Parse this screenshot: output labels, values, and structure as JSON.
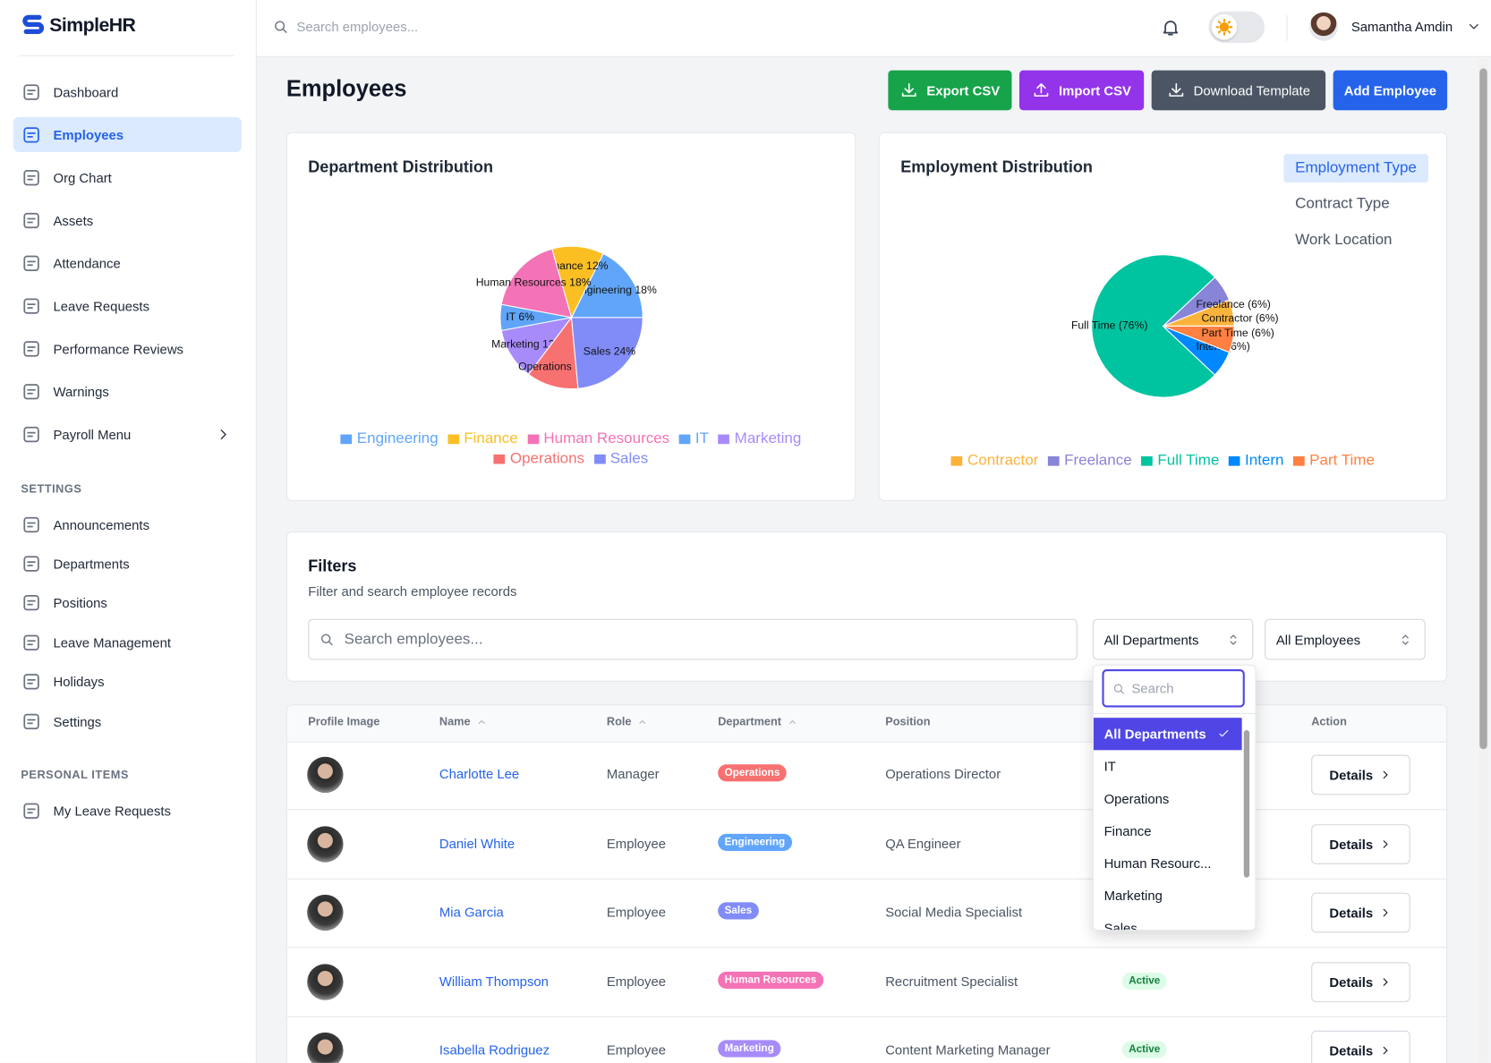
{
  "sidebar": {
    "brand": "SimpleHR",
    "nav": [
      {
        "label": "Dashboard",
        "active": false
      },
      {
        "label": "Employees",
        "active": true
      },
      {
        "label": "Org Chart",
        "active": false
      },
      {
        "label": "Assets",
        "active": false
      },
      {
        "label": "Attendance",
        "active": false
      },
      {
        "label": "Leave Requests",
        "active": false
      },
      {
        "label": "Performance Reviews",
        "active": false
      },
      {
        "label": "Warnings",
        "active": false
      },
      {
        "label": "Payroll Menu",
        "active": false
      }
    ],
    "settings_heading": "SETTINGS",
    "settings": [
      "Announcements",
      "Departments",
      "Positions",
      "Leave Management",
      "Holidays",
      "Settings"
    ],
    "personal_heading": "PERSONAL ITEMS",
    "personal": [
      "My Leave Requests"
    ]
  },
  "topbar": {
    "search_placeholder": "Search employees...",
    "user": "Samantha Amdin"
  },
  "header": {
    "title": "Employees",
    "buttons": [
      {
        "label": "Export CSV",
        "color": "#16a34a"
      },
      {
        "label": "Import CSV",
        "color": "#9333ea"
      },
      {
        "label": "Download Template",
        "color": "#4b5563"
      },
      {
        "label": "Add Employee",
        "color": "#2563eb"
      }
    ]
  },
  "chart_data": [
    {
      "type": "pie",
      "title": "Department Distribution",
      "categories": [
        "Engineering",
        "Finance",
        "Human Resources",
        "IT",
        "Marketing",
        "Operations",
        "Sales"
      ],
      "values": [
        18,
        12,
        18,
        6,
        12,
        12,
        24
      ],
      "value_labels": [
        "Engineering 18%",
        "Finance 12%",
        "Human Resources 18%",
        "IT 6%",
        "Marketing 12%",
        "Operations 12%",
        "Sales 24%"
      ],
      "colors": [
        "#60a5fa",
        "#fbbf24",
        "#f472b6",
        "#60a5fa",
        "#a78bfa",
        "#f87171",
        "#818cf8"
      ]
    },
    {
      "type": "pie",
      "title": "Employment Distribution",
      "categories": [
        "Contractor",
        "Freelance",
        "Full Time",
        "Intern",
        "Part Time"
      ],
      "values": [
        6,
        6,
        76,
        6,
        6
      ],
      "value_labels": [
        "Contractor (6%)",
        "Freelance (6%)",
        "Full Time (76%)",
        "Intern (6%)",
        "Part Time (6%)"
      ],
      "colors": [
        "#fbb33c",
        "#8884d8",
        "#00c49f",
        "#0088fe",
        "#ff8042"
      ],
      "tabs": [
        {
          "label": "Employment Type",
          "active": true
        },
        {
          "label": "Contract Type",
          "active": false
        },
        {
          "label": "Work Location",
          "active": false
        }
      ]
    }
  ],
  "filters": {
    "title": "Filters",
    "subtitle": "Filter and search employee records",
    "search_placeholder": "Search employees...",
    "selects": [
      "All Departments",
      "All Employees"
    ]
  },
  "dropdown": {
    "search_placeholder": "Search",
    "options": [
      "All Departments",
      "IT",
      "Operations",
      "Finance",
      "Human Resourc...",
      "Marketing",
      "Sales"
    ],
    "selected": 0
  },
  "table": {
    "columns": [
      {
        "label": "Profile Image",
        "sortable": false
      },
      {
        "label": "Name",
        "sortable": true
      },
      {
        "label": "Role",
        "sortable": true
      },
      {
        "label": "Department",
        "sortable": true
      },
      {
        "label": "Position",
        "sortable": false
      },
      {
        "label": "Action",
        "sortable": false
      }
    ],
    "action": "Details",
    "rows": [
      {
        "name": "Charlotte Lee",
        "role": "Manager",
        "department": "Operations",
        "badge_color": "#f87171",
        "position": "Operations Director",
        "status": null
      },
      {
        "name": "Daniel White",
        "role": "Employee",
        "department": "Engineering",
        "badge_color": "#60a5fa",
        "position": "QA Engineer",
        "status": null
      },
      {
        "name": "Mia Garcia",
        "role": "Employee",
        "department": "Sales",
        "badge_color": "#818cf8",
        "position": "Social Media Specialist",
        "status": null
      },
      {
        "name": "William Thompson",
        "role": "Employee",
        "department": "Human Resources",
        "badge_color": "#f472b6",
        "position": "Recruitment Specialist",
        "status": "Active"
      },
      {
        "name": "Isabella Rodriguez",
        "role": "Employee",
        "department": "Marketing",
        "badge_color": "#a78bfa",
        "position": "Content Marketing Manager",
        "status": "Active"
      }
    ]
  }
}
